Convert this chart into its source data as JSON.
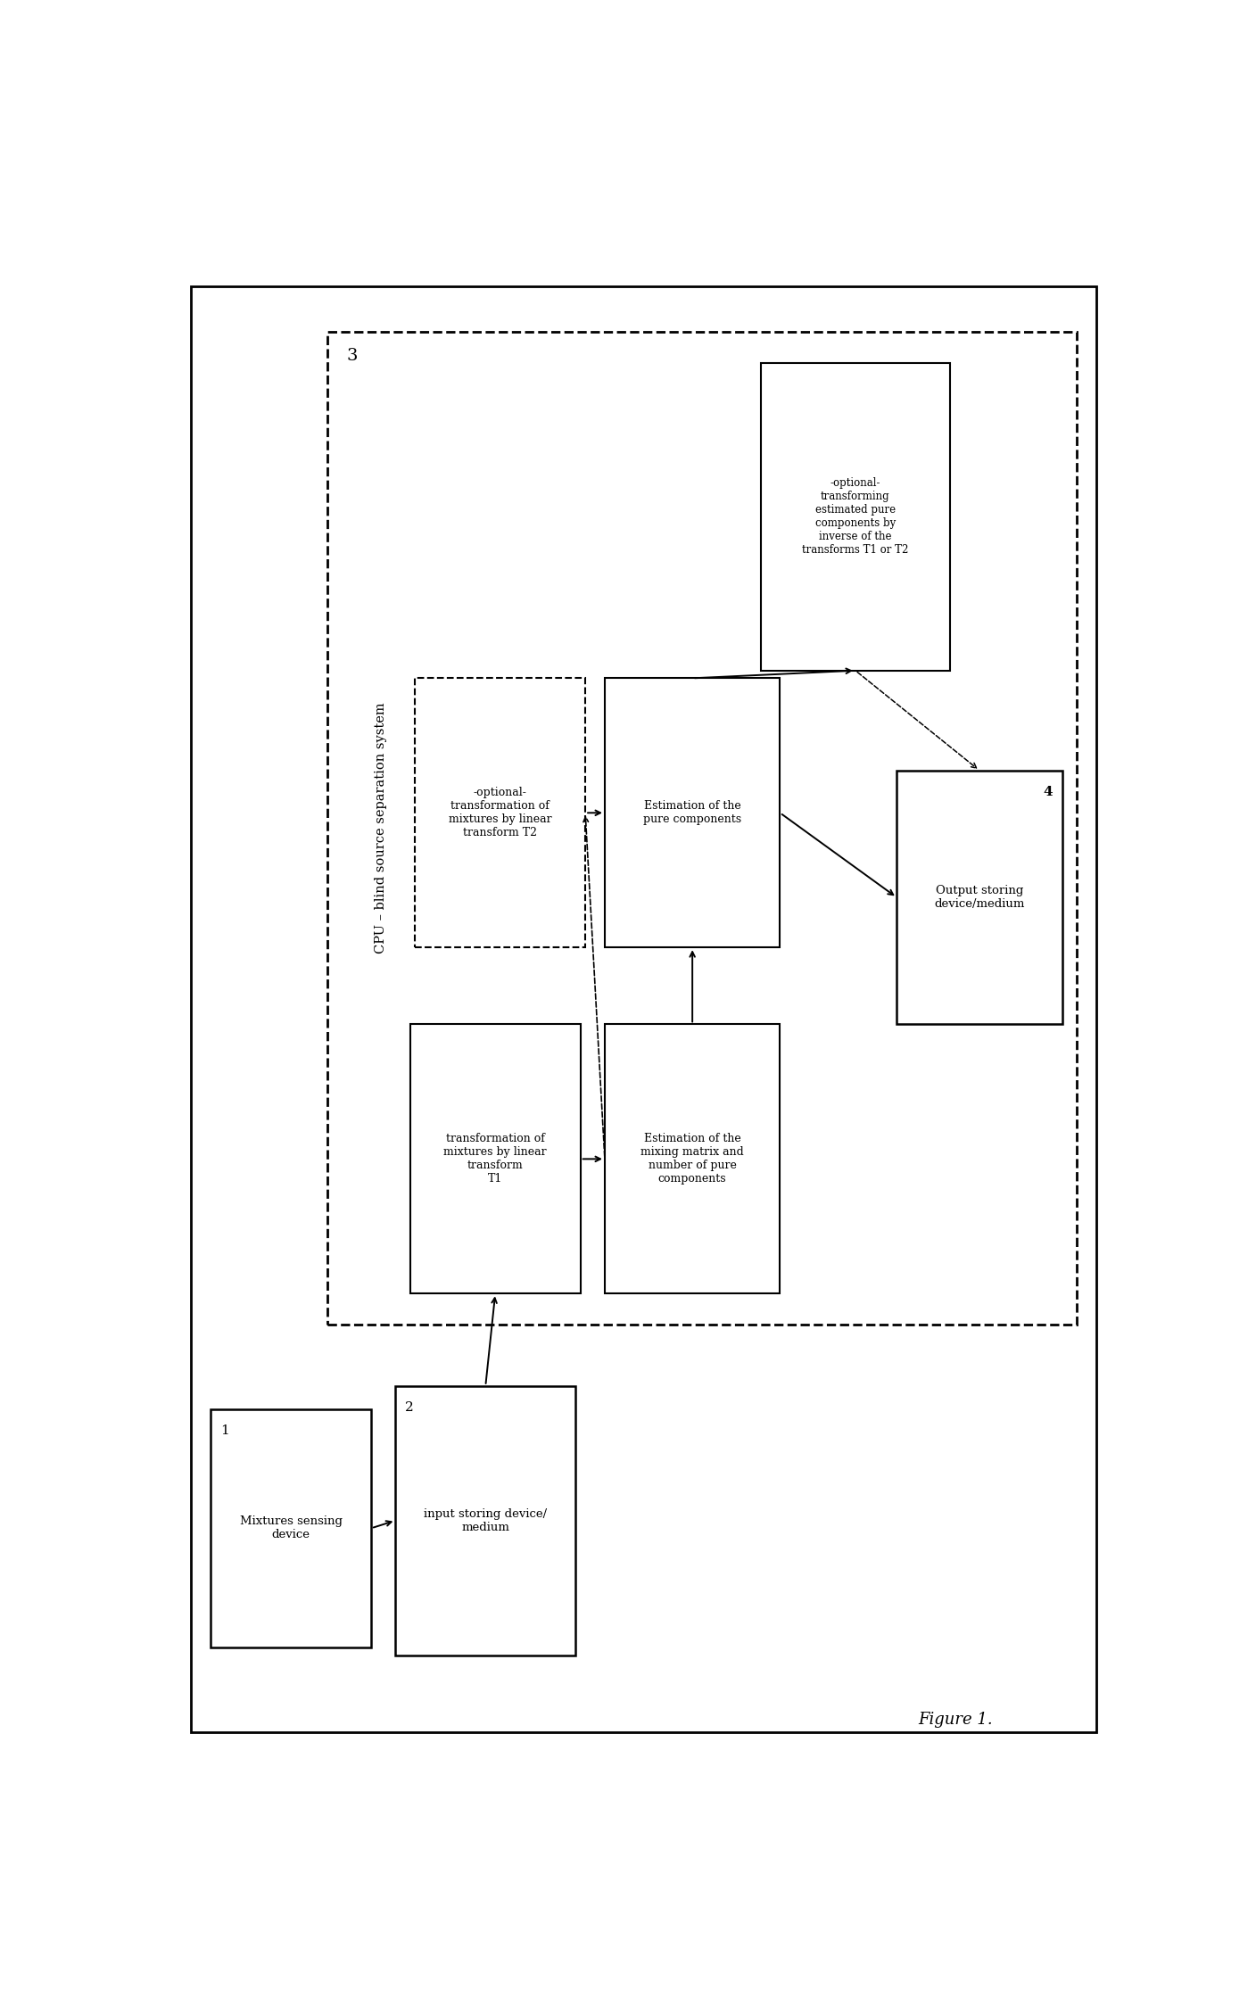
{
  "figure_label": "Figure 1.",
  "bg_color": "#ffffff",
  "cpu_box_label": "CPU – blind source separation system",
  "cpu_box_number": "3",
  "output_box_label": "Output storing\ndevice/medium",
  "output_box_number": "4",
  "box1_label": "Mixtures sensing\ndevice",
  "box1_number": "1",
  "box2_label": "input storing device/\nmedium",
  "box2_number": "2",
  "box_T1_label": "transformation of\nmixtures by linear\ntransform\nT1",
  "box_est_label": "Estimation of the\nmixing matrix and\nnumber of pure\ncomponents",
  "box_T2_label": "-optional-\ntransformation of\nmixtures by linear\ntransform T2",
  "box_pure_label": "Estimation of the\npure components",
  "box_inv_label": "-optional-\ntransforming\nestimated pure\ncomponents by\ninverse of the\ntransforms T1 or T2"
}
